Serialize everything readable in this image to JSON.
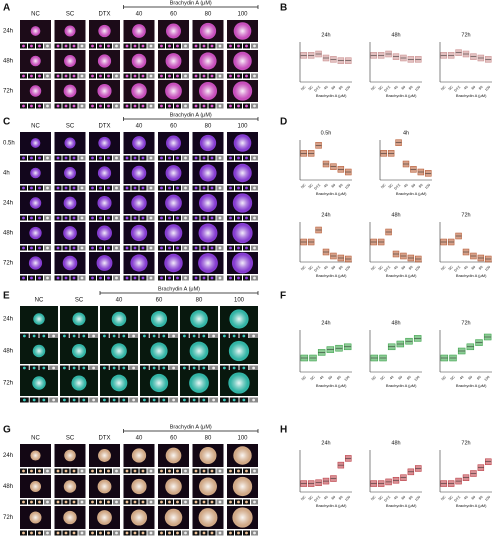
{
  "panels": {
    "A": {
      "letter": "A",
      "columns": [
        "NC",
        "SC",
        "DTX",
        "40",
        "60",
        "80",
        "100"
      ],
      "group_label": "Brachydin A (μM)",
      "rows": [
        "24h",
        "48h",
        "72h"
      ]
    },
    "B": {
      "letter": "B",
      "categories": [
        "NC",
        "SC",
        "DTX",
        "40",
        "60",
        "80",
        "100"
      ],
      "x_label": "Brachydin A (μM)",
      "color": "#c98a8a",
      "charts": [
        {
          "title": "24h",
          "ylim": [
            0,
            1.5
          ],
          "values": [
            1,
            1,
            1.05,
            0.9,
            0.85,
            0.8,
            0.8
          ]
        },
        {
          "title": "48h",
          "ylim": [
            0,
            1.5
          ],
          "values": [
            1,
            1,
            1.05,
            0.95,
            0.9,
            0.85,
            0.85
          ]
        },
        {
          "title": "72h",
          "ylim": [
            0,
            1.5
          ],
          "values": [
            1,
            1,
            1.1,
            1.05,
            0.95,
            0.9,
            0.85
          ]
        }
      ]
    },
    "C": {
      "letter": "C",
      "columns": [
        "NC",
        "SC",
        "DTX",
        "40",
        "60",
        "80",
        "100"
      ],
      "group_label": "Brachydin A (μM)",
      "rows": [
        "0.5h",
        "4h",
        "24h",
        "48h",
        "72h"
      ]
    },
    "D": {
      "letter": "D",
      "categories": [
        "NC",
        "SC",
        "DTX",
        "40",
        "60",
        "80",
        "100"
      ],
      "x_label": "Brachydin A (μM)",
      "color": "#b4532a",
      "charts": [
        {
          "title": "0.5h",
          "ylim": [
            0,
            1.5
          ],
          "values": [
            1,
            1,
            1.3,
            0.6,
            0.5,
            0.4,
            0.3
          ]
        },
        {
          "title": "4h",
          "ylim": [
            0,
            1.5
          ],
          "values": [
            1,
            1,
            1.4,
            0.6,
            0.4,
            0.3,
            0.25
          ]
        },
        {
          "title": "24h",
          "ylim": [
            0,
            2
          ],
          "values": [
            1,
            1,
            1.6,
            0.5,
            0.3,
            0.2,
            0.15
          ]
        },
        {
          "title": "48h",
          "ylim": [
            0,
            2
          ],
          "values": [
            1,
            1,
            1.5,
            0.4,
            0.3,
            0.2,
            0.15
          ]
        },
        {
          "title": "72h",
          "ylim": [
            0,
            2
          ],
          "values": [
            1,
            1,
            1.3,
            0.5,
            0.3,
            0.2,
            0.15
          ]
        }
      ]
    },
    "E": {
      "letter": "E",
      "columns": [
        "NC",
        "SC",
        "40",
        "60",
        "80",
        "100"
      ],
      "group_label": "Brachydin A (μM)",
      "rows": [
        "24h",
        "48h",
        "72h"
      ]
    },
    "F": {
      "letter": "F",
      "categories": [
        "NC",
        "SC",
        "40",
        "60",
        "80",
        "100"
      ],
      "x_label": "Brachydin A (μM)",
      "color": "#2e9e3e",
      "charts": [
        {
          "title": "24h",
          "ylim": [
            0,
            3
          ],
          "values": [
            1,
            1,
            1.4,
            1.6,
            1.7,
            1.8
          ]
        },
        {
          "title": "48h",
          "ylim": [
            0,
            3
          ],
          "values": [
            1,
            1,
            1.8,
            2,
            2.2,
            2.4
          ]
        },
        {
          "title": "72h",
          "ylim": [
            0,
            3
          ],
          "values": [
            1,
            1,
            1.5,
            1.8,
            2.1,
            2.5
          ]
        }
      ]
    },
    "G": {
      "letter": "G",
      "columns": [
        "NC",
        "SC",
        "DTX",
        "40",
        "60",
        "80",
        "100"
      ],
      "group_label": "Brachydin A (μM)",
      "rows": [
        "24h",
        "48h",
        "72h"
      ]
    },
    "H": {
      "letter": "H",
      "categories": [
        "NC",
        "SC",
        "DTX",
        "40",
        "60",
        "80",
        "100"
      ],
      "x_label": "Brachydin A (μM)",
      "color": "#b8323a",
      "charts": [
        {
          "title": "24h",
          "ylim": [
            0,
            5
          ],
          "values": [
            1,
            1,
            1.1,
            1.3,
            1.6,
            3.2,
            4
          ]
        },
        {
          "title": "48h",
          "ylim": [
            0,
            5
          ],
          "values": [
            1,
            1,
            1.2,
            1.4,
            1.7,
            2.4,
            2.8
          ]
        },
        {
          "title": "72h",
          "ylim": [
            0,
            5
          ],
          "values": [
            1,
            1,
            1.3,
            1.7,
            2.2,
            2.9,
            3.6
          ]
        }
      ]
    }
  }
}
